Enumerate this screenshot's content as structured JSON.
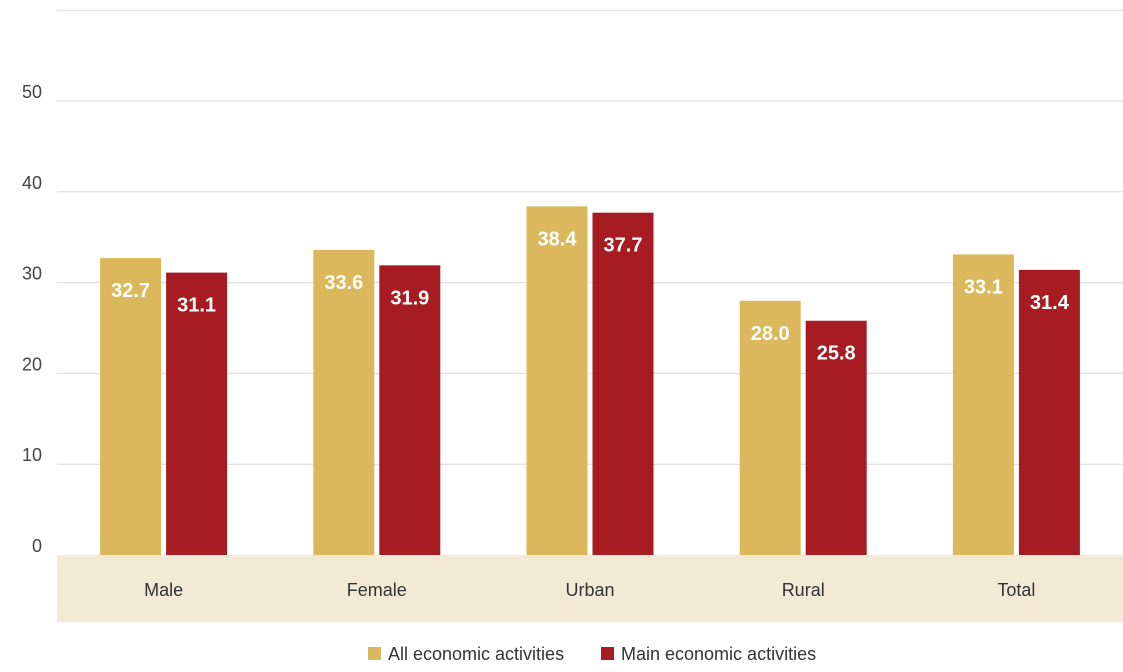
{
  "chart_data": {
    "type": "bar",
    "title": "",
    "xlabel": "",
    "ylabel": "",
    "categories": [
      "Male",
      "Female",
      "Urban",
      "Rural",
      "Total"
    ],
    "series": [
      {
        "name": "All economic activities",
        "color": "#dbb85c",
        "values": [
          32.7,
          33.6,
          38.4,
          28.0,
          33.1
        ]
      },
      {
        "name": "Main economic activities",
        "color": "#a61c22",
        "values": [
          31.1,
          31.9,
          37.7,
          25.8,
          31.4
        ]
      }
    ],
    "ylim": [
      0,
      60
    ],
    "yticks": [
      "0",
      "10",
      "20",
      "30",
      "40",
      "50"
    ],
    "grid": true,
    "legend_position": "bottom-center",
    "category_band_color": "#f3ead6",
    "gridline_color": "#d9d9d9"
  }
}
